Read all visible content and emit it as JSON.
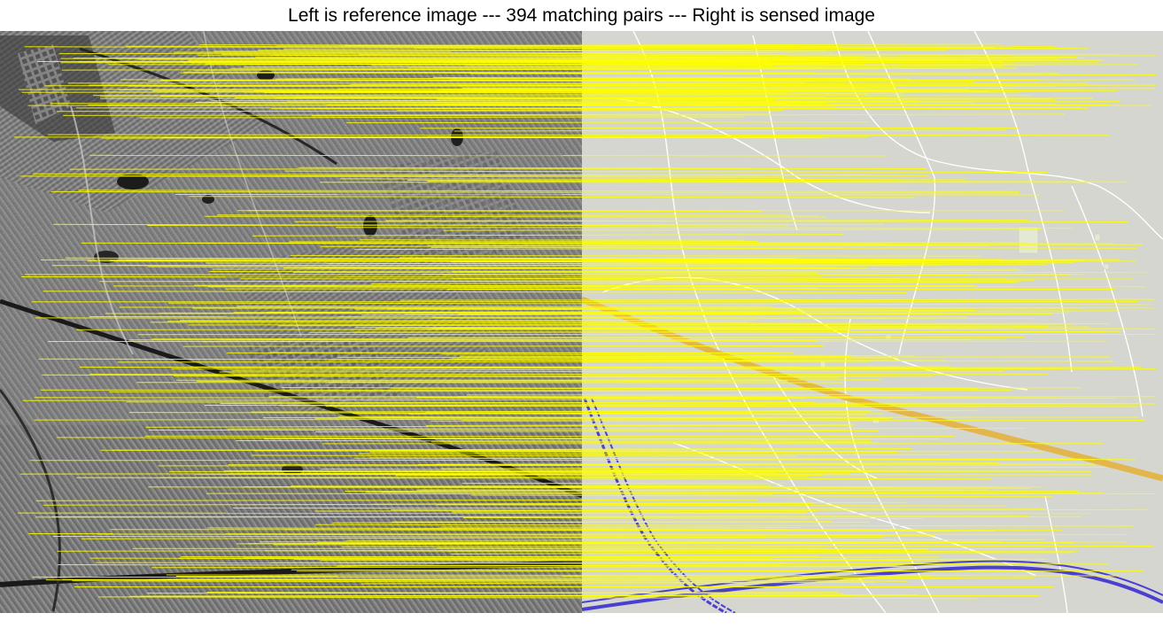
{
  "title": {
    "prefix": "Left is reference image --- ",
    "count": 394,
    "suffix": " matching pairs --- Right is sensed image"
  },
  "reference_image": {
    "description_type": "grayscale satellite (SAR) terrain",
    "base_color": "#7f7f7f",
    "dark_color": "#1e1e1e",
    "light_color": "#d0d0d0"
  },
  "sensed_image": {
    "description_type": "street map",
    "background_color": "#d4d6cf",
    "road_color": "#ffffff",
    "highway_color": "#e2b64a",
    "railway_color": "#4a3fd0",
    "building_color": "#e4e9d6"
  },
  "match_lines": {
    "color": "#ffff00",
    "pair_count": 394,
    "visible_band": "dense, nearly horizontal"
  }
}
